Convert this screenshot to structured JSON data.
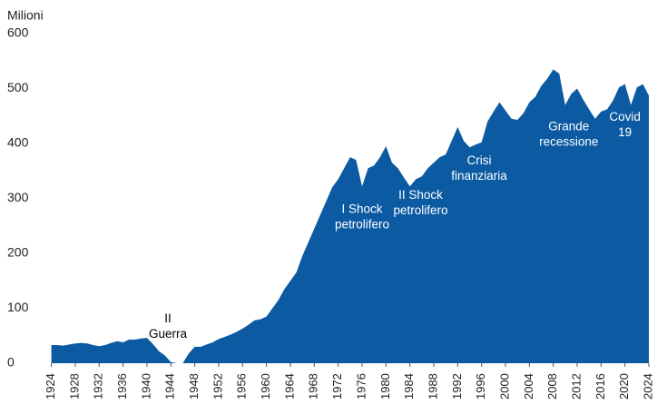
{
  "chart_data": {
    "type": "area",
    "y_label": "Milioni",
    "color": "#0b5aa2",
    "x": [
      1924,
      1925,
      1926,
      1927,
      1928,
      1929,
      1930,
      1931,
      1932,
      1933,
      1934,
      1935,
      1936,
      1937,
      1938,
      1939,
      1940,
      1941,
      1942,
      1943,
      1944,
      1945,
      1946,
      1947,
      1948,
      1949,
      1950,
      1951,
      1952,
      1953,
      1954,
      1955,
      1956,
      1957,
      1958,
      1959,
      1960,
      1961,
      1962,
      1963,
      1964,
      1965,
      1966,
      1967,
      1968,
      1969,
      1970,
      1971,
      1972,
      1973,
      1974,
      1975,
      1976,
      1977,
      1978,
      1979,
      1980,
      1981,
      1982,
      1983,
      1984,
      1985,
      1986,
      1987,
      1988,
      1989,
      1990,
      1991,
      1992,
      1993,
      1994,
      1995,
      1996,
      1997,
      1998,
      1999,
      2000,
      2001,
      2002,
      2003,
      2004,
      2005,
      2006,
      2007,
      2008,
      2009,
      2010,
      2011,
      2012,
      2013,
      2014,
      2015,
      2016,
      2017,
      2018,
      2019,
      2020,
      2021,
      2022,
      2023,
      2024
    ],
    "values": [
      33,
      33,
      32,
      34,
      36,
      37,
      36,
      33,
      31,
      33,
      37,
      40,
      38,
      43,
      43,
      45,
      46,
      35,
      22,
      14,
      2,
      0,
      0,
      18,
      30,
      30,
      34,
      38,
      44,
      48,
      52,
      57,
      63,
      70,
      78,
      80,
      85,
      100,
      115,
      135,
      150,
      165,
      195,
      220,
      245,
      270,
      295,
      320,
      335,
      355,
      375,
      370,
      322,
      355,
      360,
      375,
      395,
      365,
      355,
      338,
      322,
      335,
      340,
      355,
      365,
      375,
      380,
      405,
      430,
      405,
      393,
      398,
      402,
      440,
      458,
      475,
      460,
      445,
      443,
      455,
      475,
      485,
      505,
      518,
      535,
      527,
      470,
      490,
      500,
      480,
      462,
      445,
      458,
      462,
      478,
      502,
      508,
      470,
      502,
      508,
      487
    ],
    "xlim": [
      1923.3,
      2024.3
    ],
    "xticks": [
      1924,
      1928,
      1932,
      1936,
      1940,
      1944,
      1948,
      1952,
      1956,
      1960,
      1964,
      1968,
      1972,
      1976,
      1980,
      1984,
      1988,
      1992,
      1996,
      2000,
      2004,
      2008,
      2012,
      2016,
      2020,
      2024
    ],
    "ylim": [
      0,
      600
    ],
    "yticks": [
      0,
      100,
      200,
      300,
      400,
      500,
      600
    ],
    "annotations": [
      {
        "lines": [
          "II",
          "Guerra"
        ],
        "x": 1943.5,
        "y": 66,
        "color": "#000000"
      },
      {
        "lines": [
          "I Shock",
          "petrolifero"
        ],
        "x": 1976,
        "y": 265,
        "color": "#ffffff"
      },
      {
        "lines": [
          "II Shock",
          "petrolifero"
        ],
        "x": 1985.8,
        "y": 291,
        "color": "#ffffff"
      },
      {
        "lines": [
          "Crisi",
          "finanziaria"
        ],
        "x": 1995.6,
        "y": 354,
        "color": "#ffffff"
      },
      {
        "lines": [
          "Grande",
          "recessione"
        ],
        "x": 2010.6,
        "y": 416,
        "color": "#ffffff"
      },
      {
        "lines": [
          "Covid",
          "19"
        ],
        "x": 2020,
        "y": 433,
        "color": "#ffffff"
      }
    ]
  }
}
